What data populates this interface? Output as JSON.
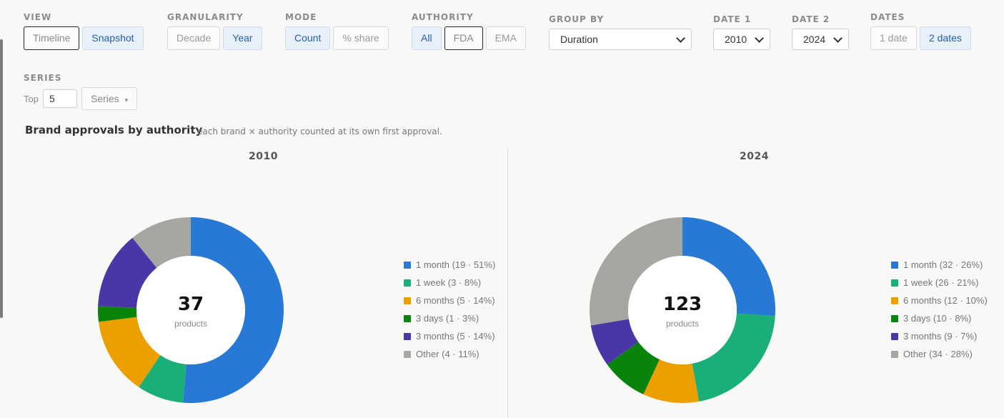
{
  "controls": {
    "view": {
      "label": "VIEW",
      "options": [
        "Timeline",
        "Snapshot"
      ]
    },
    "granularity": {
      "label": "GRANULARITY",
      "options": [
        "Decade",
        "Year"
      ]
    },
    "mode": {
      "label": "MODE",
      "options": [
        "Count",
        "% share"
      ]
    },
    "authority": {
      "label": "AUTHORITY",
      "options": [
        "All",
        "FDA",
        "EMA"
      ]
    },
    "group_by": {
      "label": "GROUP BY",
      "value": "Duration"
    },
    "date1": {
      "label": "DATE 1",
      "value": "2010"
    },
    "date2": {
      "label": "DATE 2",
      "value": "2024"
    },
    "dates": {
      "label": "DATES",
      "options": [
        "1 date",
        "2 dates"
      ]
    },
    "series": {
      "label": "SERIES",
      "top_label": "Top",
      "top_value": "5",
      "menu_label": "Series",
      "menu_arrow": "▾"
    }
  },
  "chart": {
    "title": "Brand approvals by authority",
    "subtitle": "each brand × authority counted at its own first approval."
  },
  "colors": {
    "1 month": "#2878d6",
    "1 week": "#1aaf77",
    "6 months": "#eca000",
    "3 days": "#0a830a",
    "3 months": "#4a36a6",
    "Other": "#a8a6a2"
  },
  "chart_data": [
    {
      "type": "pie",
      "title": "2010",
      "center_value": "37",
      "center_label": "products",
      "categories": [
        "1 month",
        "1 week",
        "6 months",
        "3 days",
        "3 months",
        "Other"
      ],
      "values": [
        19,
        3,
        5,
        1,
        5,
        4
      ],
      "legend": [
        "1 month (19 · 51%)",
        "1 week (3 · 8%)",
        "6 months (5 · 14%)",
        "3 days (1 · 3%)",
        "3 months (5 · 14%)",
        "Other (4 · 11%)"
      ],
      "legend_position": "right"
    },
    {
      "type": "pie",
      "title": "2024",
      "center_value": "123",
      "center_label": "products",
      "categories": [
        "1 month",
        "1 week",
        "6 months",
        "3 days",
        "3 months",
        "Other"
      ],
      "values": [
        32,
        26,
        12,
        10,
        9,
        34
      ],
      "legend": [
        "1 month (32 · 26%)",
        "1 week (26 · 21%)",
        "6 months (12 · 10%)",
        "3 days (10 · 8%)",
        "3 months (9 · 7%)",
        "Other (34 · 28%)"
      ],
      "legend_position": "right"
    }
  ]
}
